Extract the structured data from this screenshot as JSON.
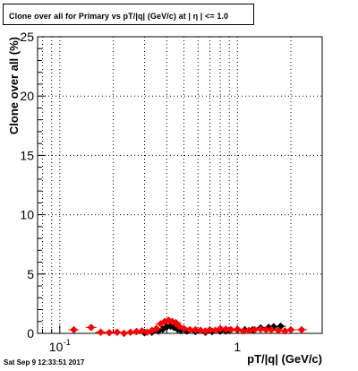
{
  "title": "Clone  over all for Primary vs pT/|q| (GeV/c) at |  η | <= 1.0",
  "footer_timestamp": "Sat Sep  9 12:33:51 2017",
  "colors": {
    "series_black": "#000000",
    "series_red": "#ff0000",
    "grid": "#000000",
    "background": "#ffffff"
  },
  "chart_data": {
    "type": "scatter",
    "title": "Clone  over all for Primary vs pT/|q| (GeV/c) at |  η | <= 1.0",
    "xlabel": "pT/|q| (GeV/c)",
    "ylabel": "Clone  over all (%)",
    "xscale": "log",
    "xlim": [
      0.075,
      3.0
    ],
    "ylim": [
      0,
      25
    ],
    "x_tick_labels": [
      {
        "value": 0.1,
        "base": "10",
        "exp": "-1"
      },
      {
        "value": 1,
        "label": "1"
      }
    ],
    "y_tick_labels": [
      "0",
      "5",
      "10",
      "15",
      "20",
      "25"
    ],
    "y_ticks": [
      0,
      5,
      10,
      15,
      20,
      25
    ],
    "grid": true,
    "legend": "none",
    "marker": "diamond",
    "series": [
      {
        "color": "#000000",
        "x": [
          0.3,
          0.33,
          0.36,
          0.38,
          0.4,
          0.42,
          0.44,
          0.46,
          0.48,
          0.52,
          0.58,
          0.66,
          0.72,
          0.8,
          0.86,
          0.9,
          1.0,
          1.1,
          1.22,
          1.35,
          1.5,
          1.6,
          1.75
        ],
        "y": [
          0.05,
          0.1,
          0.2,
          0.35,
          0.55,
          0.6,
          0.5,
          0.35,
          0.25,
          0.2,
          0.15,
          0.1,
          0.15,
          0.2,
          0.2,
          0.25,
          0.3,
          0.3,
          0.3,
          0.45,
          0.5,
          0.55,
          0.6
        ]
      },
      {
        "color": "#ff0000",
        "x": [
          0.12,
          0.15,
          0.17,
          0.19,
          0.21,
          0.23,
          0.25,
          0.27,
          0.29,
          0.31,
          0.33,
          0.35,
          0.37,
          0.39,
          0.41,
          0.43,
          0.45,
          0.47,
          0.5,
          0.54,
          0.58,
          0.62,
          0.66,
          0.7,
          0.75,
          0.8,
          0.86,
          0.92,
          1.0,
          1.08,
          1.16,
          1.25,
          1.35,
          1.45,
          1.55,
          1.7,
          1.85,
          2.0,
          2.3
        ],
        "y": [
          0.3,
          0.5,
          0.1,
          0.05,
          0.1,
          0.0,
          0.1,
          0.15,
          0.2,
          0.1,
          0.25,
          0.4,
          0.8,
          1.0,
          1.1,
          1.0,
          0.9,
          0.6,
          0.4,
          0.3,
          0.3,
          0.25,
          0.2,
          0.3,
          0.25,
          0.4,
          0.35,
          0.3,
          0.35,
          0.2,
          0.25,
          0.3,
          0.35,
          0.3,
          0.3,
          0.25,
          0.2,
          0.3,
          0.3
        ]
      }
    ]
  }
}
